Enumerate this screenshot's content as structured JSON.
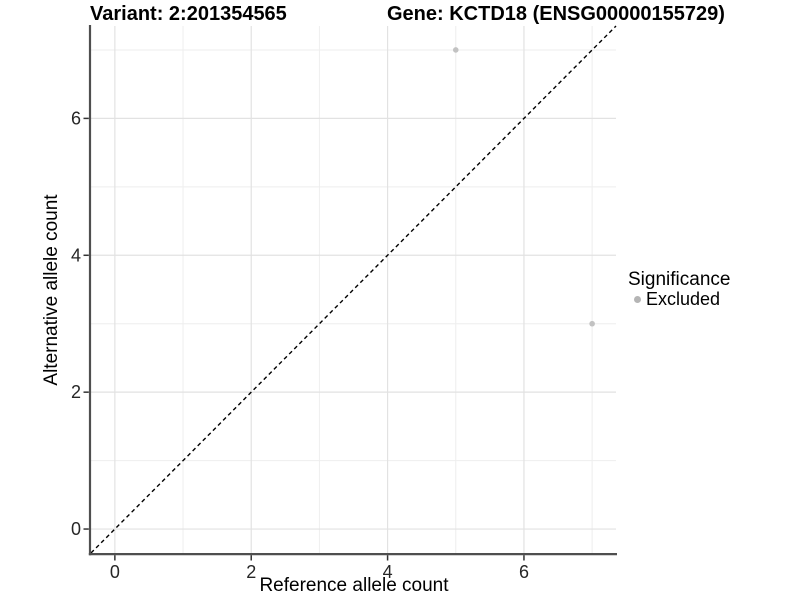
{
  "header": {
    "variant_title": "Variant: 2:201354565",
    "gene_title": "Gene: KCTD18 (ENSG00000155729)"
  },
  "axes": {
    "x_label": "Reference allele count",
    "y_label": "Alternative allele count"
  },
  "legend": {
    "title": "Significance",
    "items": [
      {
        "label": "Excluded",
        "color": "#b5b5b5"
      }
    ]
  },
  "chart_data": {
    "type": "scatter",
    "title": "Variant: 2:201354565 / Gene: KCTD18 (ENSG00000155729)",
    "xlabel": "Reference allele count",
    "ylabel": "Alternative allele count",
    "xlim": [
      -0.35,
      7.35
    ],
    "ylim": [
      -0.35,
      7.35
    ],
    "x_ticks": [
      0,
      2,
      4,
      6
    ],
    "y_ticks": [
      0,
      2,
      4,
      6
    ],
    "x_minor_ticks": [
      1,
      3,
      5,
      7
    ],
    "y_minor_ticks": [
      1,
      3,
      5,
      7
    ],
    "grid": true,
    "legend_position": "right",
    "series": [
      {
        "name": "Excluded",
        "color": "#c2c2c2",
        "marker": "circle",
        "points": [
          [
            5,
            7
          ],
          [
            7,
            3
          ]
        ]
      }
    ],
    "annotations": [
      {
        "type": "abline",
        "slope": 1,
        "intercept": 0,
        "style": "dashed",
        "color": "#000000"
      }
    ]
  },
  "colors": {
    "grid_major": "#e2e2e2",
    "grid_minor": "#eeeeee",
    "axis_line": "#4f4f4f",
    "tick": "#333333",
    "tick_label": "#262626",
    "legend_dot": "#b5b5b5",
    "dashed_line": "#000000",
    "background": "#ffffff"
  }
}
